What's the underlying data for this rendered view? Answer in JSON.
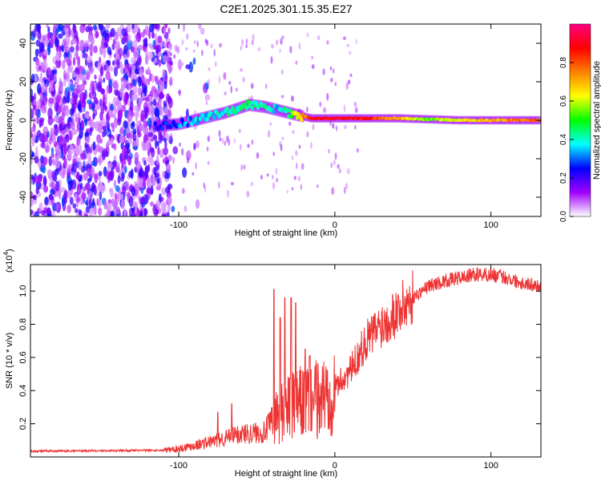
{
  "title": "C2E1.2025.301.15.35.E27",
  "chart_data": [
    {
      "type": "heatmap",
      "xlabel": "Height of straight line (km)",
      "ylabel": "Frequency (Hz)",
      "xlim": [
        -195,
        132
      ],
      "ylim": [
        -50,
        50
      ],
      "x_ticks": [
        -100,
        0,
        100
      ],
      "x_tick_labels": [
        "-100",
        "0",
        "100"
      ],
      "y_ticks": [
        -40,
        -20,
        0,
        20,
        40
      ],
      "y_tick_labels": [
        "-40",
        "-20",
        "0",
        "20",
        "40"
      ],
      "colorbar": {
        "label": "Normalized spectral amplitude",
        "range": [
          0,
          1
        ],
        "ticks": [
          0.0,
          0.2,
          0.4,
          0.6,
          0.8
        ],
        "tick_labels": [
          "0.0",
          "0.2",
          "0.4",
          "0.6",
          "0.8"
        ],
        "colors": [
          "#ffffff",
          "#a000ff",
          "#0000ff",
          "#00ffff",
          "#00ff00",
          "#ffff00",
          "#ff8000",
          "#ff0000",
          "#ff0080"
        ]
      },
      "ridge": {
        "x": [
          -115,
          -100,
          -85,
          -70,
          -55,
          -45,
          -35,
          -25,
          -15,
          0,
          20,
          40,
          60,
          80,
          100,
          132
        ],
        "freq": [
          -3,
          -2,
          1,
          4,
          8,
          7,
          5,
          3,
          1,
          1,
          1,
          1,
          0.5,
          0,
          0,
          0
        ],
        "amplitude": [
          0.2,
          0.3,
          0.35,
          0.4,
          0.45,
          0.4,
          0.35,
          0.6,
          0.85,
          0.9,
          0.85,
          0.7,
          0.55,
          0.6,
          0.7,
          0.8
        ]
      },
      "noise_region_x": [
        -195,
        -105
      ]
    },
    {
      "type": "line",
      "xlabel": "Height of straight line (km)",
      "ylabel": "SNR (10 * v/v)",
      "y_scale_label": "(x10",
      "y_scale_exponent": "4",
      "color": "#ee3333",
      "xlim": [
        -195,
        132
      ],
      "ylim": [
        0,
        11600
      ],
      "x_ticks": [
        -100,
        0,
        100
      ],
      "x_tick_labels": [
        "-100",
        "0",
        "100"
      ],
      "y_ticks": [
        2000,
        4000,
        6000,
        8000,
        10000
      ],
      "y_tick_labels": [
        "0.2",
        "0.4",
        "0.6",
        "0.8",
        "1.0"
      ],
      "envelope": {
        "x": [
          -195,
          -110,
          -100,
          -80,
          -60,
          -45,
          -40,
          -30,
          -20,
          -10,
          0,
          10,
          20,
          30,
          40,
          50,
          60,
          70,
          80,
          90,
          100,
          110,
          120,
          132
        ],
        "snr": [
          350,
          400,
          500,
          900,
          1400,
          1500,
          2200,
          3000,
          3300,
          3500,
          4200,
          5200,
          7000,
          8000,
          8800,
          9600,
          10300,
          10600,
          10800,
          11000,
          11000,
          10800,
          10500,
          10300
        ]
      },
      "spikes": [
        {
          "x": -39,
          "snr": 10100
        },
        {
          "x": -35,
          "snr": 8400
        },
        {
          "x": -32,
          "snr": 9600
        },
        {
          "x": -28,
          "snr": 9600
        },
        {
          "x": -25,
          "snr": 9300
        },
        {
          "x": -19,
          "snr": 6500
        },
        {
          "x": -16,
          "snr": 6100
        },
        {
          "x": -66,
          "snr": 3200
        },
        {
          "x": -75,
          "snr": 2700
        }
      ]
    }
  ]
}
